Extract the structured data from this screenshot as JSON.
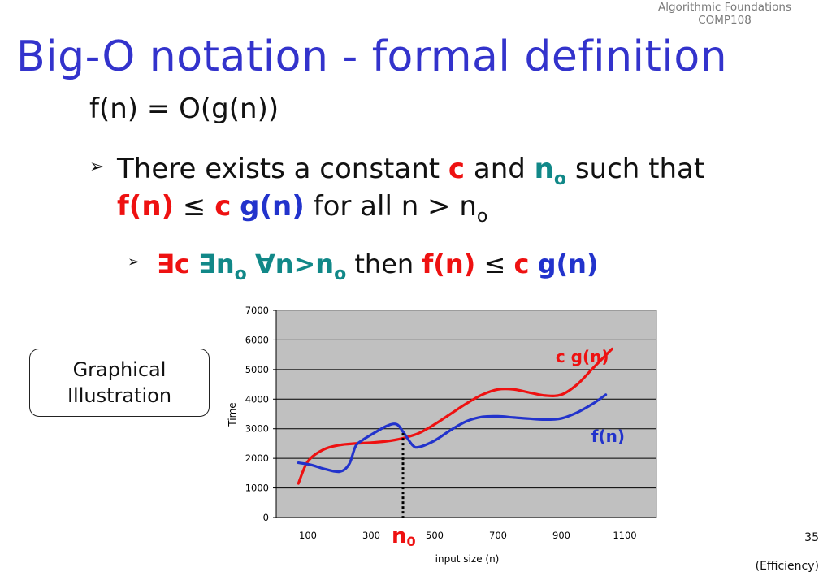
{
  "header": {
    "course_line1": "Algorithmic Foundations",
    "course_line2": "COMP108"
  },
  "slide": {
    "title": "Big-O notation - formal definition",
    "formula": "f(n) = O(g(n))",
    "bullet1": {
      "p1": "There exists a constant",
      "c": "c",
      "p2": "and",
      "n": "n",
      "n_sub": "o",
      "p3": "such that",
      "fn": "f(n)",
      "leq": "≤",
      "c2": "c",
      "gn": "g(n)",
      "p4": "for all n > n",
      "p4_sub": "o"
    },
    "bullet2": {
      "exists_c": "∃c",
      "exists_n": "∃n",
      "exists_n_sub": "o",
      "forall": "∀n>n",
      "forall_sub": "o",
      "then": "then",
      "fn": "f(n)",
      "leq": "≤",
      "c": "c",
      "gn": "g(n)"
    },
    "callout": {
      "line1": "Graphical",
      "line2": "Illustration"
    },
    "page_number": "35",
    "footer": "(Efficiency)",
    "colors": {
      "title": "#3333cc",
      "red": "#ee1111",
      "blue": "#2233cc",
      "teal": "#118888",
      "plot_bg": "#c0c0c0"
    }
  },
  "chart_data": {
    "type": "line",
    "ylabel": "Time",
    "xlabel": "input size (n)",
    "ylim": [
      0,
      7000
    ],
    "xlim": [
      0,
      1200
    ],
    "y_ticks": [
      "0",
      "1000",
      "2000",
      "3000",
      "4000",
      "5000",
      "6000",
      "7000"
    ],
    "x_ticks": [
      100,
      300,
      500,
      700,
      900,
      1100
    ],
    "grid": true,
    "series": [
      {
        "name": "c g(n)",
        "color": "#ee1111",
        "x": [
          70,
          100,
          150,
          200,
          250,
          300,
          350,
          400,
          450,
          500,
          550,
          600,
          650,
          700,
          750,
          800,
          850,
          900,
          950,
          1000,
          1060
        ],
        "y": [
          1150,
          1900,
          2300,
          2450,
          2500,
          2530,
          2580,
          2680,
          2850,
          3150,
          3500,
          3850,
          4150,
          4330,
          4330,
          4220,
          4120,
          4150,
          4500,
          5050,
          5700
        ]
      },
      {
        "name": "f(n)",
        "color": "#2233cc",
        "x": [
          70,
          110,
          150,
          200,
          230,
          250,
          270,
          300,
          350,
          380,
          400,
          430,
          450,
          500,
          550,
          600,
          650,
          700,
          750,
          800,
          850,
          900,
          950,
          1000,
          1040
        ],
        "y": [
          1850,
          1780,
          1650,
          1550,
          1800,
          2400,
          2600,
          2800,
          3100,
          3150,
          2900,
          2450,
          2380,
          2600,
          2950,
          3250,
          3400,
          3420,
          3380,
          3340,
          3310,
          3350,
          3550,
          3850,
          4150
        ]
      }
    ],
    "annotations": [
      {
        "text": "c g(n)",
        "color": "#ee1111"
      },
      {
        "text": "f(n)",
        "color": "#2233cc"
      },
      {
        "text": "n",
        "sub": "0",
        "color": "#ee1111",
        "marker_x": 400
      }
    ]
  }
}
